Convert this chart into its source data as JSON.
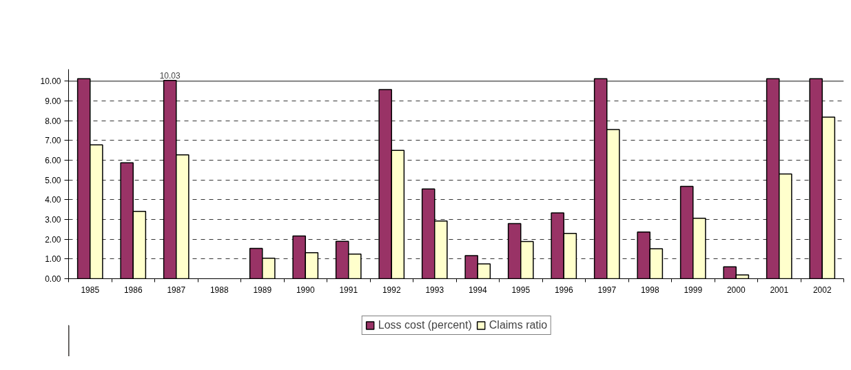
{
  "chart_data": {
    "type": "bar",
    "categories": [
      "1985",
      "1986",
      "1987",
      "1988",
      "1989",
      "1990",
      "1991",
      "1992",
      "1993",
      "1994",
      "1995",
      "1996",
      "1997",
      "1998",
      "1999",
      "2000",
      "2001",
      "2002"
    ],
    "series": [
      {
        "name": "Loss cost (percent)",
        "color": "#993366",
        "values": [
          10.12,
          5.87,
          10.03,
          null,
          1.53,
          2.16,
          1.89,
          9.57,
          4.54,
          1.17,
          2.79,
          3.33,
          10.12,
          2.36,
          4.67,
          0.6,
          10.12,
          10.12
        ],
        "value_labels": [
          null,
          null,
          "10.03",
          null,
          null,
          null,
          null,
          null,
          null,
          null,
          null,
          null,
          null,
          null,
          null,
          null,
          null,
          null
        ]
      },
      {
        "name": "Claims ratio",
        "color": "#ffffcc",
        "values": [
          6.77,
          3.41,
          6.27,
          null,
          1.04,
          1.32,
          1.25,
          6.49,
          2.92,
          0.75,
          1.88,
          2.29,
          7.55,
          1.52,
          3.06,
          0.19,
          5.3,
          8.18
        ]
      }
    ],
    "ylim": [
      0,
      10.6
    ],
    "ref_lines": [
      {
        "axis": "y",
        "value": 10,
        "color": "#808080",
        "line_style": "solid"
      }
    ],
    "yticks": [
      {
        "value": 0,
        "label": "0.00"
      },
      {
        "value": 1,
        "label": "1.00"
      },
      {
        "value": 2,
        "label": "2.00"
      },
      {
        "value": 3,
        "label": "3.00"
      },
      {
        "value": 4,
        "label": "4.00"
      },
      {
        "value": 5,
        "label": "5.00"
      },
      {
        "value": 6,
        "label": "6.00"
      },
      {
        "value": 7,
        "label": "7.00"
      },
      {
        "value": 8,
        "label": "8.00"
      },
      {
        "value": 9,
        "label": "9.00"
      },
      {
        "value": 10,
        "label": "10.00"
      }
    ],
    "grid": "y",
    "legend": "bottom"
  }
}
